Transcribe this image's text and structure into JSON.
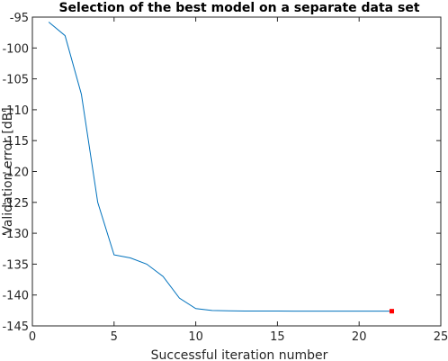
{
  "chart_data": {
    "type": "line",
    "title": "Selection of the best model on a separate data set",
    "xlabel": "Successful iteration number",
    "ylabel": "Validation error [dB]",
    "xlim": [
      0,
      25
    ],
    "ylim": [
      -145,
      -95
    ],
    "xticks": [
      0,
      5,
      10,
      15,
      20,
      25
    ],
    "yticks": [
      -95,
      -100,
      -105,
      -110,
      -115,
      -120,
      -125,
      -130,
      -135,
      -140,
      -145
    ],
    "xtick_labels": [
      "0",
      "5",
      "10",
      "15",
      "20",
      "25"
    ],
    "ytick_labels": [
      "-95",
      "-100",
      "-105",
      "-110",
      "-115",
      "-120",
      "-125",
      "-130",
      "-135",
      "-140",
      "-145"
    ],
    "grid": false,
    "series": [
      {
        "color": "#0072bd",
        "x": [
          1,
          2,
          3,
          4,
          5,
          6,
          7,
          8,
          9,
          10,
          11,
          12,
          13,
          14,
          15,
          16,
          17,
          18,
          19,
          20,
          21,
          22
        ],
        "y": [
          -95.8,
          -98.0,
          -107.5,
          -125.0,
          -133.5,
          -134.0,
          -135.0,
          -137.0,
          -140.5,
          -142.2,
          -142.5,
          -142.55,
          -142.6,
          -142.6,
          -142.6,
          -142.62,
          -142.62,
          -142.62,
          -142.62,
          -142.62,
          -142.62,
          -142.62
        ]
      }
    ],
    "highlight": {
      "x": 22,
      "y": -142.62,
      "color": "#ff0000",
      "marker": "square"
    }
  }
}
